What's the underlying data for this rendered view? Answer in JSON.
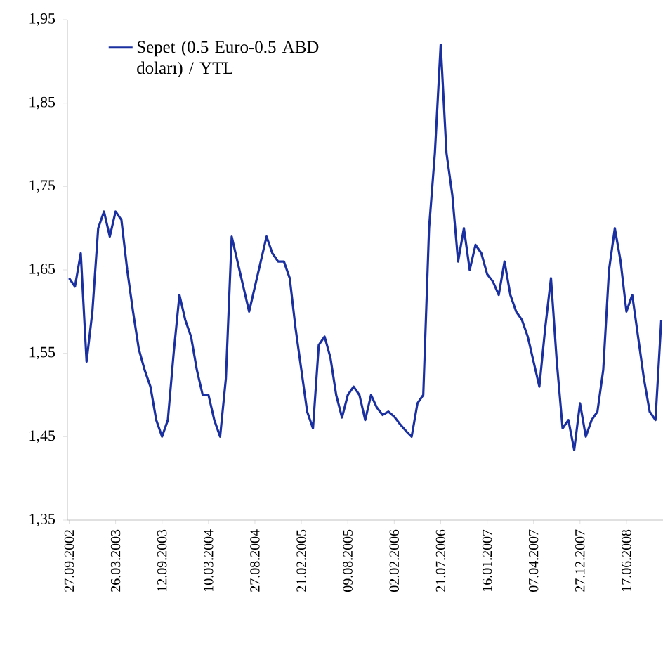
{
  "chart_data": {
    "type": "line",
    "legend": "top left",
    "marker": "none",
    "line_style": "solid",
    "ylim": [
      1.35,
      1.95
    ],
    "yticks": [
      {
        "value": 1.35,
        "label": "1,35"
      },
      {
        "value": 1.45,
        "label": "1,45"
      },
      {
        "value": 1.55,
        "label": "1,55"
      },
      {
        "value": 1.65,
        "label": "1,65"
      },
      {
        "value": 1.75,
        "label": "1,75"
      },
      {
        "value": 1.85,
        "label": "1,85"
      },
      {
        "value": 1.95,
        "label": "1,95"
      }
    ],
    "categories": [
      "27.09.2002",
      null,
      null,
      null,
      null,
      null,
      null,
      null,
      "26.03.2003",
      null,
      null,
      null,
      null,
      null,
      null,
      null,
      "12.09.2003",
      null,
      null,
      null,
      null,
      null,
      null,
      null,
      "10.03.2004",
      null,
      null,
      null,
      null,
      null,
      null,
      null,
      "27.08.2004",
      null,
      null,
      null,
      null,
      null,
      null,
      null,
      "21.02.2005",
      null,
      null,
      null,
      null,
      null,
      null,
      null,
      "09.08.2005",
      null,
      null,
      null,
      null,
      null,
      null,
      null,
      "02.02.2006",
      null,
      null,
      null,
      null,
      null,
      null,
      null,
      "21.07.2006",
      null,
      null,
      null,
      null,
      null,
      null,
      null,
      "16.01.2007",
      null,
      null,
      null,
      null,
      null,
      null,
      null,
      "07.04.2007",
      null,
      null,
      null,
      null,
      null,
      null,
      null,
      "27.12.2007",
      null,
      null,
      null,
      null,
      null,
      null,
      null,
      "17.06.2008",
      null,
      null,
      null,
      null,
      null,
      null
    ],
    "series": [
      {
        "name": "Sepet (0.5 Euro-0.5 ABD doları) / YTL",
        "color": "#1a2fa0",
        "values": [
          1.64,
          1.63,
          1.67,
          1.54,
          1.6,
          1.7,
          1.72,
          1.69,
          1.72,
          1.71,
          1.65,
          1.6,
          1.555,
          1.53,
          1.51,
          1.47,
          1.45,
          1.47,
          1.55,
          1.62,
          1.59,
          1.57,
          1.53,
          1.5,
          1.5,
          1.47,
          1.45,
          1.52,
          1.69,
          1.66,
          1.63,
          1.6,
          1.63,
          1.66,
          1.69,
          1.67,
          1.66,
          1.66,
          1.64,
          1.58,
          1.53,
          1.48,
          1.46,
          1.56,
          1.57,
          1.545,
          1.5,
          1.473,
          1.5,
          1.51,
          1.5,
          1.47,
          1.5,
          1.485,
          1.476,
          1.48,
          1.474,
          1.465,
          1.457,
          1.45,
          1.49,
          1.5,
          1.7,
          1.79,
          1.92,
          1.79,
          1.74,
          1.66,
          1.7,
          1.65,
          1.68,
          1.67,
          1.645,
          1.636,
          1.62,
          1.66,
          1.62,
          1.6,
          1.59,
          1.57,
          1.54,
          1.51,
          1.58,
          1.64,
          1.54,
          1.46,
          1.47,
          1.434,
          1.49,
          1.45,
          1.47,
          1.48,
          1.53,
          1.65,
          1.7,
          1.66,
          1.6,
          1.62,
          1.57,
          1.52,
          1.48,
          1.47,
          1.59
        ]
      }
    ]
  }
}
